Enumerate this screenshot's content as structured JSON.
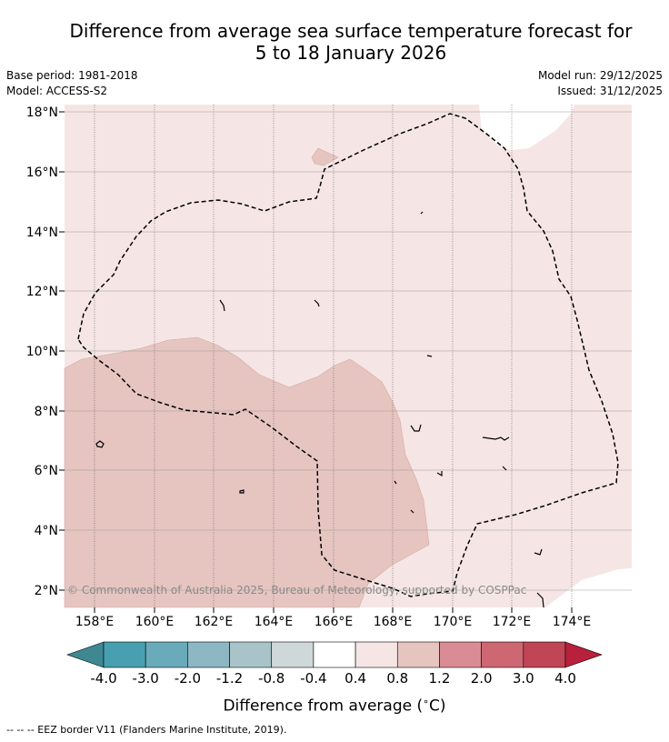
{
  "title_line1": "Difference from average sea surface temperature forecast for",
  "title_line2": "5 to 18 January 2026",
  "meta": {
    "base_period": "Base period: 1981-2018",
    "model": "Model: ACCESS-S2",
    "model_run": "Model run: 29/12/2025",
    "issued": "Issued: 31/12/2025"
  },
  "map": {
    "lon_ticks": [
      "158°E",
      "160°E",
      "162°E",
      "164°E",
      "166°E",
      "168°E",
      "170°E",
      "172°E",
      "174°E"
    ],
    "lat_ticks": [
      "18°N",
      "16°N",
      "14°N",
      "12°N",
      "10°N",
      "8°N",
      "6°N",
      "4°N",
      "2°N"
    ],
    "credit": "© Commonwealth of Australia 2025, Bureau of Meteorology, supported by COSPPac",
    "colors": {
      "anomaly_0_4_0_8": "#f5e6e5",
      "anomaly_0_8_1_2": "#e6c5c1",
      "land": "#ffffff"
    }
  },
  "colorbar": {
    "labels": [
      "-4.0",
      "-3.0",
      "-2.0",
      "-1.2",
      "-0.8",
      "-0.4",
      "0.4",
      "0.8",
      "1.2",
      "2.0",
      "3.0",
      "4.0"
    ],
    "colors": [
      "#3f8891",
      "#489fb0",
      "#6aabbb",
      "#8db8c3",
      "#a9c4c9",
      "#cfd8d9",
      "#ffffff",
      "#f5e6e5",
      "#e6c5c1",
      "#d98c93",
      "#cd6873",
      "#c04556",
      "#b8203b"
    ],
    "label": "Difference from average (",
    "label_deg": "∘",
    "label_unit": "C)"
  },
  "legend": "-- -- -- EEZ border V11 (Flanders Marine Institute, 2019)."
}
